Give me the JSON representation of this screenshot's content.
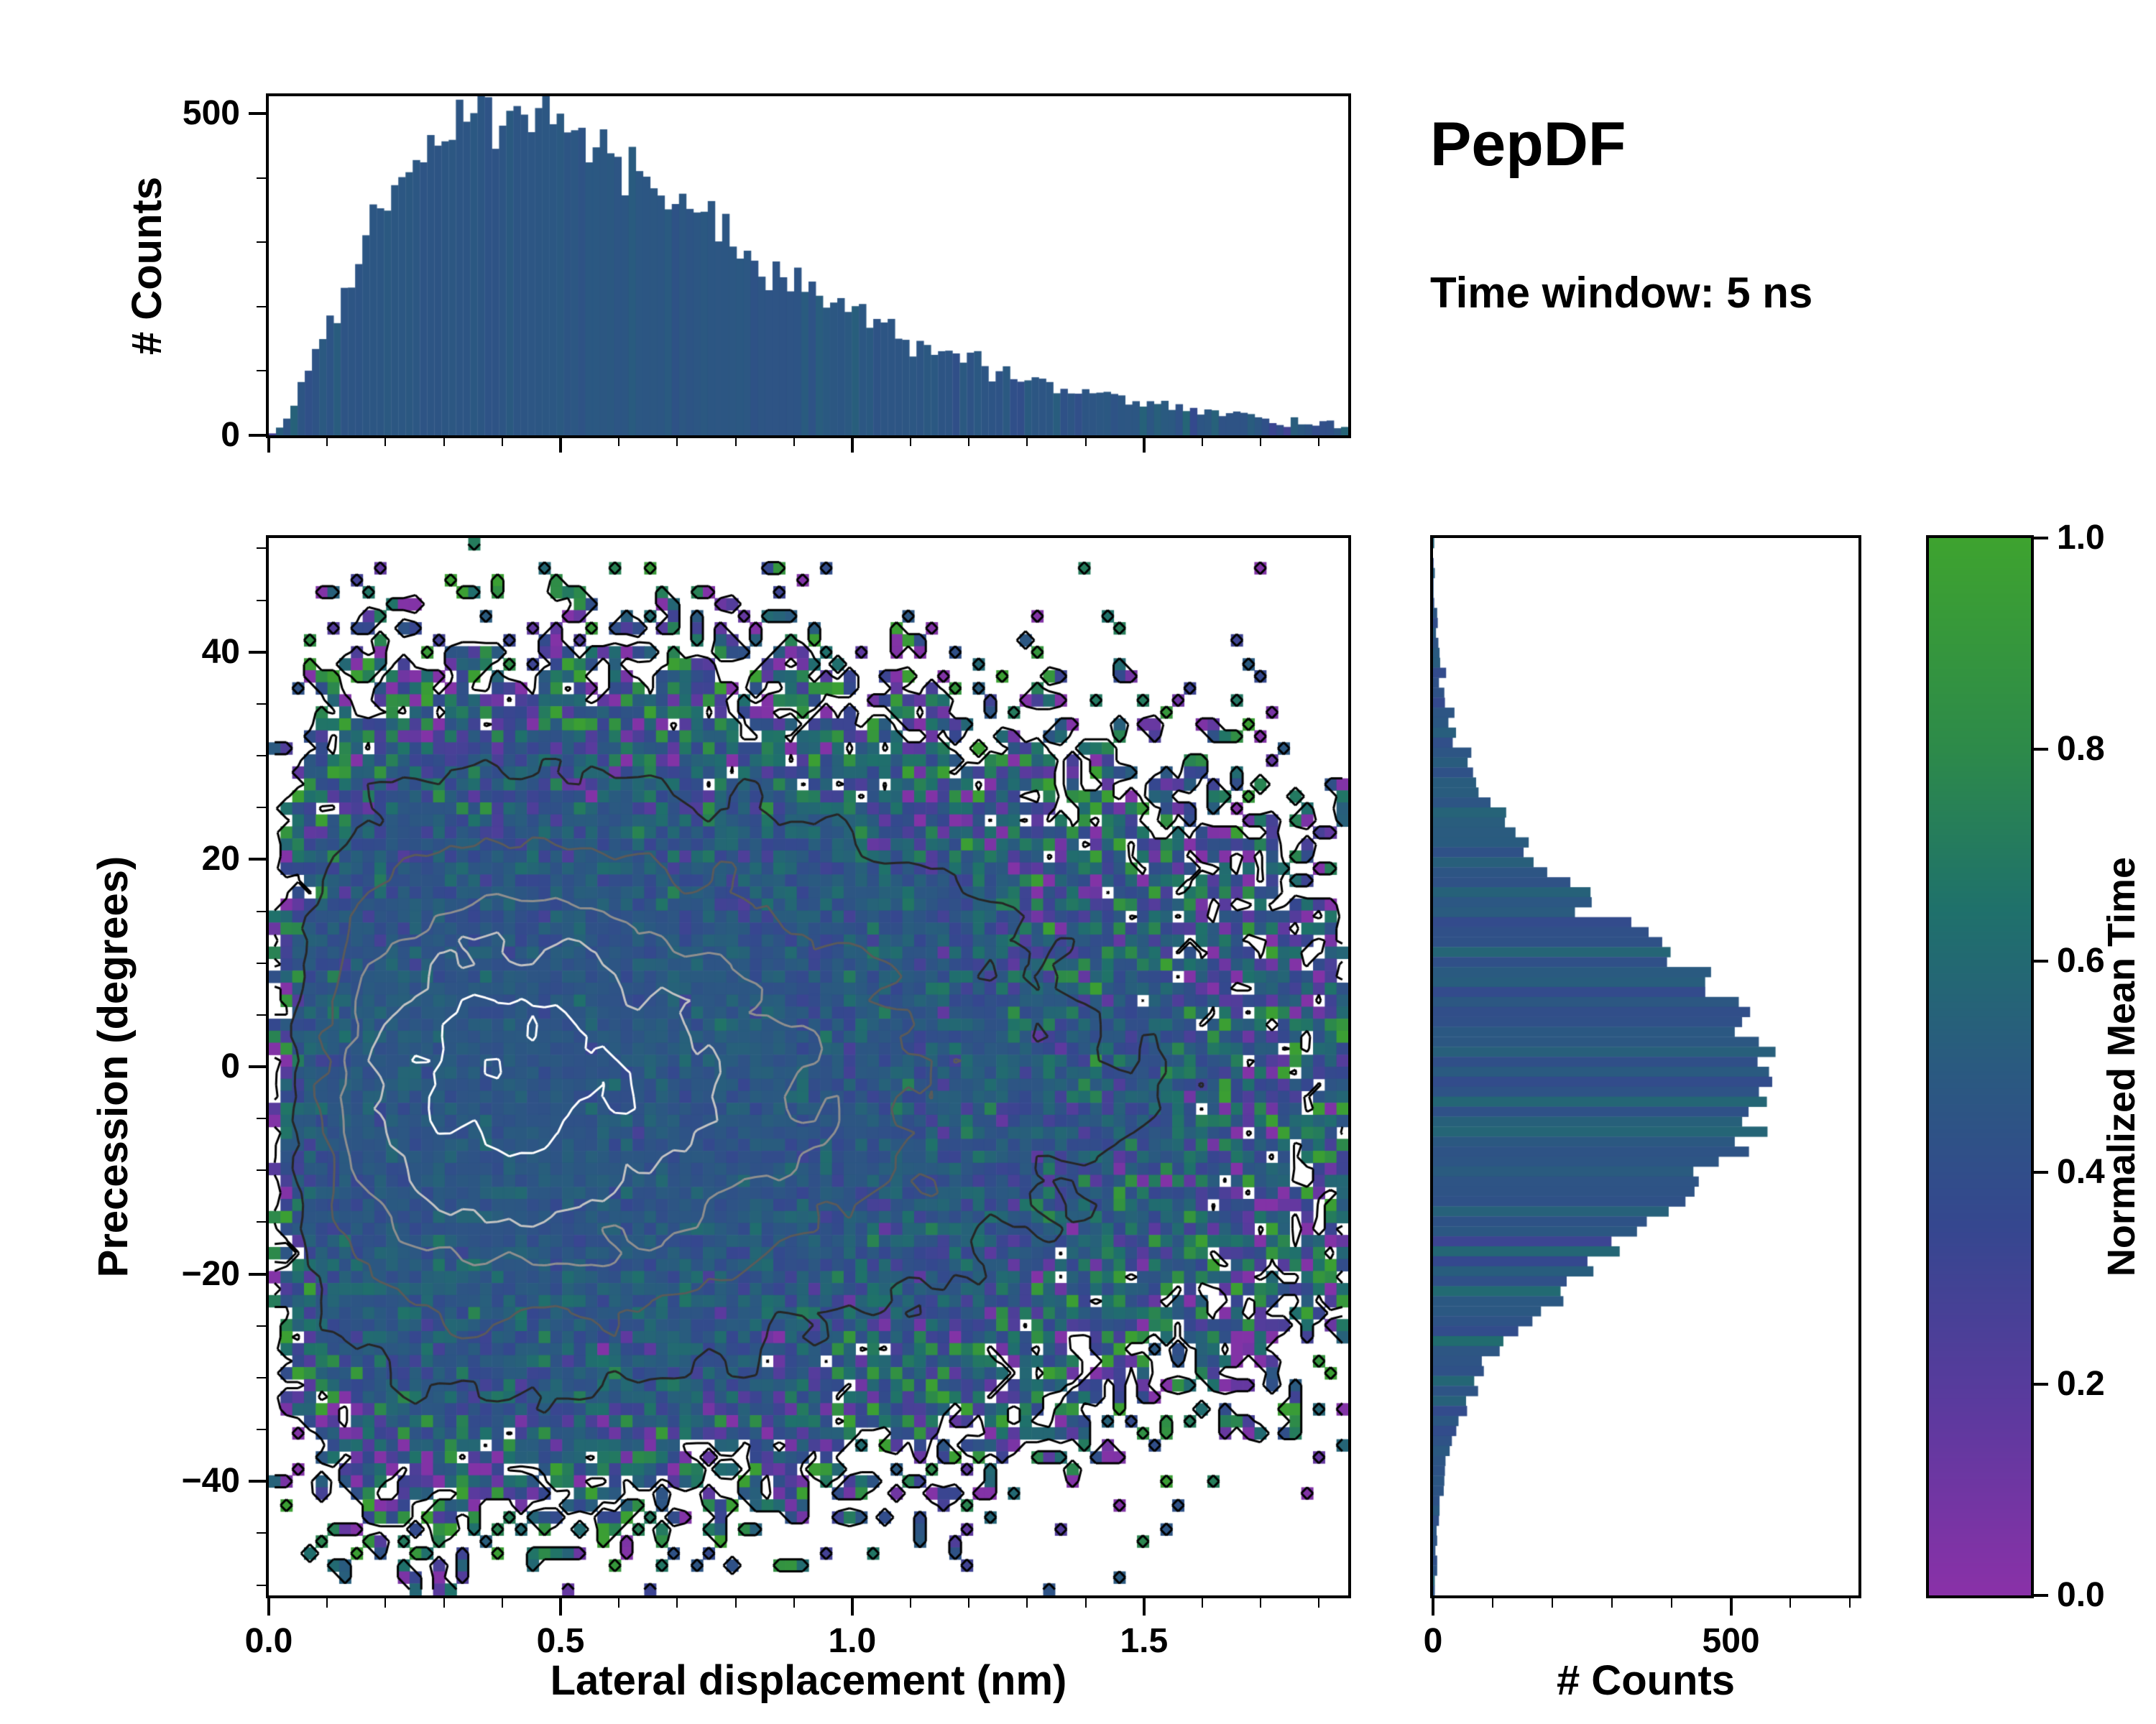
{
  "chart_data": {
    "type": "heatmap",
    "title": "PepDF",
    "subtitle": "Time window: 5 ns",
    "seed": 1337,
    "colormap": {
      "stops": [
        [
          0.0,
          "#8a31a8"
        ],
        [
          0.18,
          "#5b3a9e"
        ],
        [
          0.35,
          "#35478f"
        ],
        [
          0.5,
          "#2a5a80"
        ],
        [
          0.65,
          "#1f716b"
        ],
        [
          0.8,
          "#2d8a4a"
        ],
        [
          1.0,
          "#3ea32f"
        ]
      ]
    },
    "main": {
      "type": "heatmap",
      "xlabel": "Lateral displacement (nm)",
      "ylabel": "Precession (degrees)",
      "xlim": [
        0,
        1.85
      ],
      "ylim": [
        -51,
        51
      ],
      "xticks": {
        "values": [
          0,
          0.5,
          1,
          1.5
        ],
        "labels": [
          "0.0",
          "0.5",
          "1.0",
          "1.5"
        ],
        "minor_step": 0.1
      },
      "yticks": {
        "values": [
          -40,
          -20,
          0,
          20,
          40
        ],
        "labels": [
          "−40",
          "−20",
          "0",
          "20",
          "40"
        ],
        "minor_step": 5
      },
      "grid": {
        "nx": 92,
        "ny": 88
      },
      "density": {
        "x_dist": "gamma",
        "gamma_shape": 2.7,
        "gamma_scale": 0.24,
        "y_dist": "normal",
        "normal_mean": -1.5,
        "normal_sigma": 14.5,
        "peak_cell_count": 55
      },
      "mean_time": {
        "center": 0.47,
        "spread": 0.35
      },
      "contours": {
        "raw_level": 0.5,
        "smoothed_level_fractions": [
          0.1,
          0.25,
          0.42,
          0.6,
          0.8
        ],
        "colors": [
          "#000000",
          "#262626",
          "#5a5a5a",
          "#8f8f8f",
          "#c3c3c3",
          "#ffffff"
        ],
        "linewidth": 3
      }
    },
    "top_hist": {
      "type": "bar",
      "orientation": "vertical",
      "ylabel": "# Counts",
      "bins": 150,
      "peak_count": 500,
      "ylim": [
        0,
        527
      ],
      "yticks": {
        "values": [
          0,
          500
        ],
        "labels": [
          "0",
          "500"
        ],
        "minor_step": 100
      },
      "bar_value": 0.47,
      "bar_value_spread": 0.3
    },
    "right_hist": {
      "type": "bar",
      "orientation": "horizontal",
      "xlabel": "# Counts",
      "bins": 106,
      "peak_count": 560,
      "xlim": [
        0,
        714
      ],
      "xticks": {
        "values": [
          0,
          500
        ],
        "labels": [
          "0",
          "500"
        ],
        "minor_step": 100
      },
      "bar_value": 0.47,
      "bar_value_spread": 0.06
    },
    "colorbar": {
      "label": "Normalized Mean Time",
      "range": [
        0,
        1
      ],
      "ticks": {
        "values": [
          0,
          0.2,
          0.4,
          0.6,
          0.8,
          1
        ],
        "labels": [
          "0.0",
          "0.2",
          "0.4",
          "0.6",
          "0.8",
          "1.0"
        ]
      }
    }
  }
}
